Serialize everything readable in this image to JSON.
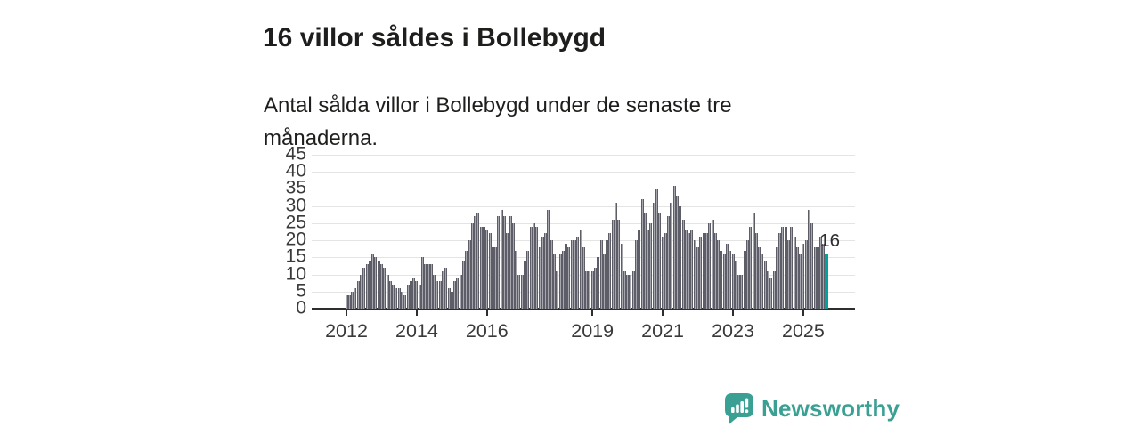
{
  "header": {
    "title": "16 villor såldes i Bollebygd",
    "subtitle": "Antal sålda villor i Bollebygd under de senaste tre månaderna."
  },
  "annotation": {
    "label": "16"
  },
  "branding": {
    "name": "Newsworthy",
    "icon": "newsworthy-chart-bubble-icon",
    "color": "#3aa093"
  },
  "colors": {
    "bar": "#a6a6ae",
    "bar_outline": "#5d5d67",
    "bar_highlight": "#00a39b",
    "gridline": "#e4e4e4",
    "axis": "#2e2e2e",
    "text": "#1e1e1c"
  },
  "chart_data": {
    "type": "bar",
    "title": "16 villor såldes i Bollebygd",
    "xlabel": "",
    "ylabel": "",
    "ylim": [
      0,
      45
    ],
    "y_ticks": [
      0,
      5,
      10,
      15,
      20,
      25,
      30,
      35,
      40,
      45
    ],
    "grid": true,
    "frequency": "monthly",
    "x_start": "2012-01",
    "x_end": "2025-09",
    "x_tick_labels": [
      "2012",
      "2014",
      "2016",
      "2019",
      "2021",
      "2023",
      "2025"
    ],
    "x_tick_month_index": [
      0,
      24,
      48,
      84,
      108,
      132,
      156
    ],
    "highlight_last_value": 16,
    "values": [
      4,
      4,
      5,
      6,
      8,
      10,
      12,
      13,
      14,
      16,
      15,
      14,
      13,
      12,
      10,
      8,
      7,
      6,
      6,
      5,
      4,
      7,
      8,
      9,
      8,
      7,
      15,
      13,
      13,
      13,
      10,
      8,
      8,
      11,
      12,
      6,
      5,
      8,
      9,
      10,
      14,
      17,
      20,
      25,
      27,
      28,
      24,
      24,
      23,
      22,
      18,
      18,
      27,
      29,
      27,
      22,
      27,
      25,
      17,
      10,
      10,
      14,
      17,
      24,
      25,
      24,
      18,
      21,
      22,
      29,
      20,
      16,
      11,
      16,
      17,
      19,
      18,
      20,
      20,
      21,
      23,
      18,
      11,
      11,
      11,
      12,
      15,
      20,
      16,
      20,
      22,
      26,
      31,
      26,
      19,
      11,
      10,
      10,
      11,
      20,
      23,
      32,
      28,
      23,
      25,
      31,
      35,
      28,
      21,
      22,
      27,
      31,
      36,
      33,
      30,
      26,
      23,
      22,
      23,
      20,
      18,
      21,
      22,
      22,
      25,
      26,
      22,
      20,
      17,
      16,
      19,
      17,
      16,
      14,
      10,
      10,
      17,
      20,
      24,
      28,
      22,
      18,
      16,
      14,
      11,
      9,
      11,
      18,
      22,
      24,
      24,
      20,
      24,
      21,
      18,
      16,
      19,
      20,
      29,
      25,
      18,
      18,
      21,
      19,
      16
    ]
  }
}
